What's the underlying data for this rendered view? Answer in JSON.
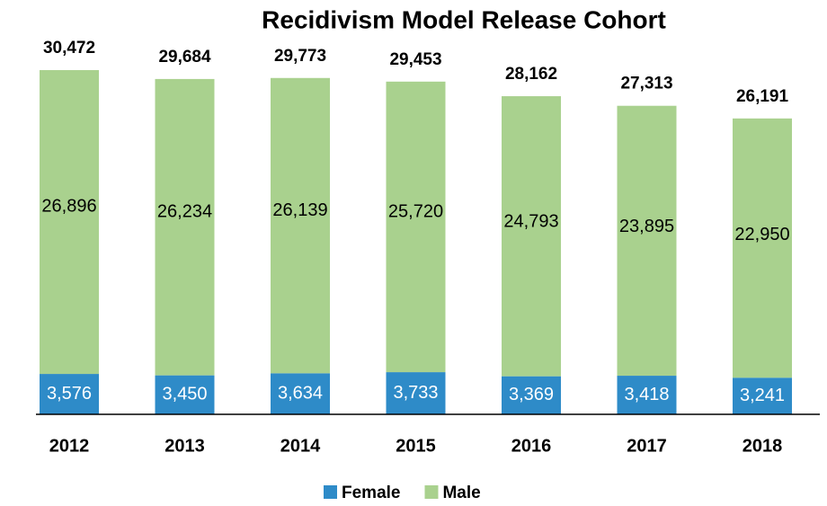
{
  "chart_data": {
    "type": "stacked_bar",
    "title": "Recidivism Model Release Cohort",
    "categories": [
      "2012",
      "2013",
      "2014",
      "2015",
      "2016",
      "2017",
      "2018"
    ],
    "series": [
      {
        "name": "Female",
        "color": "#2e8bc8",
        "values": [
          3576,
          3450,
          3634,
          3733,
          3369,
          3418,
          3241
        ],
        "value_labels": [
          "3,576",
          "3,450",
          "3,634",
          "3,733",
          "3,369",
          "3,418",
          "3,241"
        ]
      },
      {
        "name": "Male",
        "color": "#a9d18e",
        "values": [
          26896,
          26234,
          26139,
          25720,
          24793,
          23895,
          22950
        ],
        "value_labels": [
          "26,896",
          "26,234",
          "26,139",
          "25,720",
          "24,793",
          "23,895",
          "22,950"
        ]
      }
    ],
    "total_labels": [
      "30,472",
      "29,684",
      "29,773",
      "29,453",
      "28,162",
      "27,313",
      "26,191"
    ],
    "legend": "bottom"
  }
}
